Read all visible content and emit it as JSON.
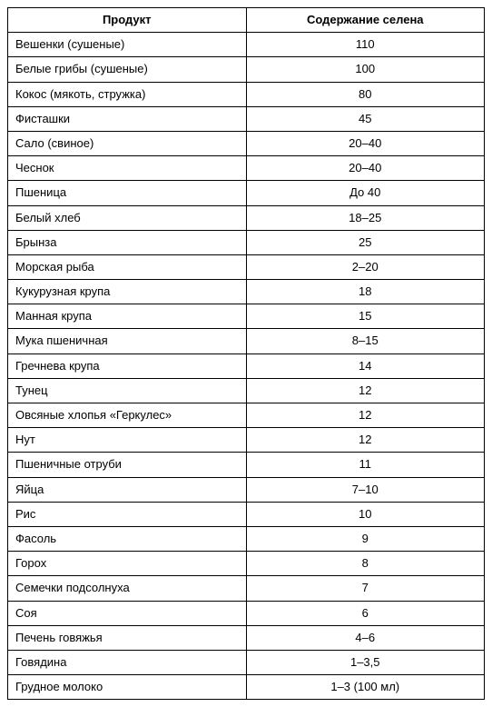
{
  "table": {
    "columns": [
      "Продукт",
      "Содержание селена"
    ],
    "rows": [
      [
        "Вешенки (сушеные)",
        "110"
      ],
      [
        "Белые грибы (сушеные)",
        "100"
      ],
      [
        "Кокос (мякоть, стружка)",
        "80"
      ],
      [
        "Фисташки",
        "45"
      ],
      [
        "Сало (свиное)",
        "20–40"
      ],
      [
        "Чеснок",
        "20–40"
      ],
      [
        "Пшеница",
        "До 40"
      ],
      [
        "Белый хлеб",
        "18–25"
      ],
      [
        "Брынза",
        "25"
      ],
      [
        "Морская рыба",
        "2–20"
      ],
      [
        "Кукурузная крупа",
        "18"
      ],
      [
        "Манная крупа",
        "15"
      ],
      [
        "Мука пшеничная",
        "8–15"
      ],
      [
        "Гречнева крупа",
        "14"
      ],
      [
        "Тунец",
        "12"
      ],
      [
        "Овсяные хлопья «Геркулес»",
        "12"
      ],
      [
        "Нут",
        "12"
      ],
      [
        "Пшеничные отруби",
        "11"
      ],
      [
        "Яйца",
        "7–10"
      ],
      [
        "Рис",
        "10"
      ],
      [
        "Фасоль",
        "9"
      ],
      [
        "Горох",
        "8"
      ],
      [
        "Семечки подсолнуха",
        "7"
      ],
      [
        "Соя",
        "6"
      ],
      [
        "Печень говяжья",
        "4–6"
      ],
      [
        "Говядина",
        "1–3,5"
      ],
      [
        "Грудное молоко",
        "1–3 (100 мл)"
      ]
    ],
    "border_color": "#000000",
    "background_color": "#ffffff",
    "header_fontweight": "bold",
    "font_family": "Arial, Helvetica, sans-serif",
    "cell_fontsize": 13,
    "col_widths": [
      "50%",
      "50%"
    ]
  }
}
